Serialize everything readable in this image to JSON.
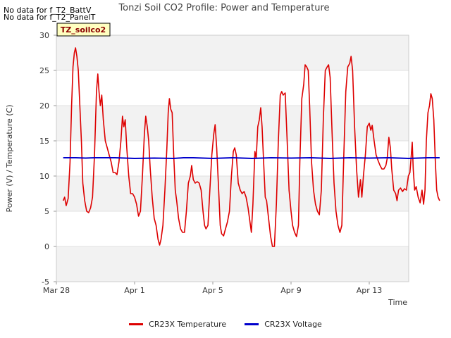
{
  "notes": [
    "No data for f_T2_BattV",
    "No data for f_T2_PanelT"
  ],
  "site_tag": "TZ_soilco2",
  "chart_data": {
    "type": "line",
    "title": "Tonzi Soil CO2 Profile: Power and Temperature",
    "xlabel": "Time",
    "ylabel": "Power (V) / Temperature (C)",
    "ylim": [
      -5,
      30
    ],
    "yticks": [
      -5,
      0,
      5,
      10,
      15,
      20,
      25,
      30
    ],
    "xlim_days": [
      0,
      18.4
    ],
    "xticks": [
      {
        "day": 0,
        "label": "Mar 28"
      },
      {
        "day": 4,
        "label": "Apr 1"
      },
      {
        "day": 8,
        "label": "Apr 5"
      },
      {
        "day": 12,
        "label": "Apr 9"
      },
      {
        "day": 16,
        "label": "Apr 13"
      }
    ],
    "grid": "alternating horizontal bands",
    "legend_position": "bottom",
    "series": [
      {
        "name": "CR23X Temperature",
        "color": "#dd0000",
        "points": [
          [
            0.35,
            6.5
          ],
          [
            0.42,
            7.0
          ],
          [
            0.5,
            5.8
          ],
          [
            0.6,
            6.8
          ],
          [
            0.7,
            12
          ],
          [
            0.78,
            20
          ],
          [
            0.85,
            25.5
          ],
          [
            0.92,
            27.5
          ],
          [
            0.98,
            28.2
          ],
          [
            1.05,
            27
          ],
          [
            1.12,
            25
          ],
          [
            1.2,
            20
          ],
          [
            1.28,
            15
          ],
          [
            1.35,
            9
          ],
          [
            1.45,
            6.5
          ],
          [
            1.55,
            5.0
          ],
          [
            1.65,
            4.8
          ],
          [
            1.75,
            5.5
          ],
          [
            1.85,
            7
          ],
          [
            1.95,
            13
          ],
          [
            2.05,
            22
          ],
          [
            2.12,
            24.5
          ],
          [
            2.18,
            22
          ],
          [
            2.25,
            20
          ],
          [
            2.32,
            21.5
          ],
          [
            2.4,
            18
          ],
          [
            2.5,
            15
          ],
          [
            2.6,
            14
          ],
          [
            2.7,
            13
          ],
          [
            2.8,
            12
          ],
          [
            2.9,
            10.5
          ],
          [
            3.0,
            10.5
          ],
          [
            3.1,
            10.2
          ],
          [
            3.2,
            12
          ],
          [
            3.3,
            15
          ],
          [
            3.38,
            18.5
          ],
          [
            3.45,
            17
          ],
          [
            3.52,
            18
          ],
          [
            3.6,
            14
          ],
          [
            3.7,
            10
          ],
          [
            3.8,
            7.5
          ],
          [
            3.9,
            7.5
          ],
          [
            4.0,
            7
          ],
          [
            4.1,
            6
          ],
          [
            4.2,
            4.3
          ],
          [
            4.3,
            5
          ],
          [
            4.4,
            10
          ],
          [
            4.5,
            16
          ],
          [
            4.57,
            18.5
          ],
          [
            4.65,
            17
          ],
          [
            4.72,
            15
          ],
          [
            4.8,
            11
          ],
          [
            4.9,
            7
          ],
          [
            5.0,
            4
          ],
          [
            5.1,
            3
          ],
          [
            5.2,
            1
          ],
          [
            5.28,
            0.2
          ],
          [
            5.35,
            1
          ],
          [
            5.45,
            3
          ],
          [
            5.55,
            8
          ],
          [
            5.65,
            14
          ],
          [
            5.72,
            19
          ],
          [
            5.78,
            21
          ],
          [
            5.85,
            19.5
          ],
          [
            5.92,
            19
          ],
          [
            6.0,
            13
          ],
          [
            6.08,
            8
          ],
          [
            6.15,
            6.5
          ],
          [
            6.25,
            4
          ],
          [
            6.35,
            2.5
          ],
          [
            6.45,
            2
          ],
          [
            6.55,
            2
          ],
          [
            6.65,
            5
          ],
          [
            6.75,
            9
          ],
          [
            6.85,
            10
          ],
          [
            6.92,
            11.5
          ],
          [
            7.0,
            9.5
          ],
          [
            7.1,
            9
          ],
          [
            7.2,
            9.2
          ],
          [
            7.3,
            9
          ],
          [
            7.4,
            8
          ],
          [
            7.5,
            5
          ],
          [
            7.58,
            3
          ],
          [
            7.65,
            2.5
          ],
          [
            7.75,
            3
          ],
          [
            7.85,
            8
          ],
          [
            7.95,
            13
          ],
          [
            8.05,
            16
          ],
          [
            8.12,
            17.3
          ],
          [
            8.2,
            14
          ],
          [
            8.3,
            8
          ],
          [
            8.38,
            3
          ],
          [
            8.45,
            1.8
          ],
          [
            8.55,
            1.5
          ],
          [
            8.65,
            2.5
          ],
          [
            8.75,
            3.5
          ],
          [
            8.85,
            5
          ],
          [
            8.95,
            10
          ],
          [
            9.05,
            13.5
          ],
          [
            9.12,
            14
          ],
          [
            9.2,
            13
          ],
          [
            9.3,
            9
          ],
          [
            9.4,
            8
          ],
          [
            9.5,
            7.5
          ],
          [
            9.6,
            7.8
          ],
          [
            9.7,
            7
          ],
          [
            9.8,
            5.5
          ],
          [
            9.9,
            3.5
          ],
          [
            9.97,
            2
          ],
          [
            10.05,
            6
          ],
          [
            10.15,
            13.5
          ],
          [
            10.22,
            12.5
          ],
          [
            10.3,
            17
          ],
          [
            10.38,
            18
          ],
          [
            10.45,
            19.7
          ],
          [
            10.52,
            17
          ],
          [
            10.6,
            12
          ],
          [
            10.68,
            7
          ],
          [
            10.75,
            6.5
          ],
          [
            10.85,
            4
          ],
          [
            10.95,
            1.5
          ],
          [
            11.05,
            0
          ],
          [
            11.15,
            0
          ],
          [
            11.25,
            6
          ],
          [
            11.35,
            15
          ],
          [
            11.45,
            21.5
          ],
          [
            11.52,
            22
          ],
          [
            11.6,
            21.5
          ],
          [
            11.7,
            21.8
          ],
          [
            11.8,
            15
          ],
          [
            11.9,
            8
          ],
          [
            12.0,
            5
          ],
          [
            12.08,
            3
          ],
          [
            12.18,
            2
          ],
          [
            12.28,
            1.4
          ],
          [
            12.38,
            3
          ],
          [
            12.45,
            12
          ],
          [
            12.55,
            21
          ],
          [
            12.65,
            23
          ],
          [
            12.72,
            25.8
          ],
          [
            12.8,
            25.5
          ],
          [
            12.88,
            25
          ],
          [
            12.95,
            20
          ],
          [
            13.05,
            12
          ],
          [
            13.15,
            8
          ],
          [
            13.25,
            6
          ],
          [
            13.35,
            5
          ],
          [
            13.45,
            4.5
          ],
          [
            13.55,
            8
          ],
          [
            13.65,
            18
          ],
          [
            13.75,
            25
          ],
          [
            13.85,
            25.5
          ],
          [
            13.92,
            25.8
          ],
          [
            14.0,
            24
          ],
          [
            14.1,
            16
          ],
          [
            14.2,
            9
          ],
          [
            14.3,
            5
          ],
          [
            14.4,
            3
          ],
          [
            14.5,
            2
          ],
          [
            14.6,
            3
          ],
          [
            14.7,
            13
          ],
          [
            14.8,
            22
          ],
          [
            14.9,
            25.5
          ],
          [
            15.0,
            26
          ],
          [
            15.07,
            27
          ],
          [
            15.15,
            25
          ],
          [
            15.25,
            17
          ],
          [
            15.35,
            11
          ],
          [
            15.45,
            7
          ],
          [
            15.55,
            9.5
          ],
          [
            15.62,
            7
          ],
          [
            15.7,
            10
          ],
          [
            15.8,
            13
          ],
          [
            15.9,
            17
          ],
          [
            16.0,
            17.5
          ],
          [
            16.08,
            16.5
          ],
          [
            16.15,
            17.2
          ],
          [
            16.25,
            15
          ],
          [
            16.35,
            13
          ],
          [
            16.45,
            12.2
          ],
          [
            16.55,
            11.5
          ],
          [
            16.65,
            11
          ],
          [
            16.75,
            11
          ],
          [
            16.85,
            11.5
          ],
          [
            16.92,
            12.5
          ],
          [
            17.0,
            15.5
          ],
          [
            17.08,
            14
          ],
          [
            17.15,
            11
          ],
          [
            17.25,
            8
          ],
          [
            17.35,
            7.5
          ],
          [
            17.42,
            6.5
          ],
          [
            17.5,
            8
          ],
          [
            17.6,
            8.3
          ],
          [
            17.7,
            7.8
          ],
          [
            17.8,
            8.2
          ],
          [
            17.9,
            8
          ],
          [
            18.0,
            10
          ],
          [
            18.08,
            10.5
          ],
          [
            18.15,
            13
          ],
          [
            18.2,
            14.8
          ],
          [
            18.25,
            11
          ],
          [
            18.32,
            8
          ],
          [
            18.4,
            8.5
          ],
          [
            18.5,
            7
          ],
          [
            18.6,
            6.2
          ],
          [
            18.7,
            8
          ],
          [
            18.78,
            6
          ],
          [
            18.85,
            8
          ],
          [
            18.92,
            15
          ],
          [
            19.0,
            19
          ],
          [
            19.08,
            20
          ],
          [
            19.15,
            21.7
          ],
          [
            19.22,
            21
          ],
          [
            19.3,
            18
          ],
          [
            19.38,
            12
          ],
          [
            19.45,
            8
          ],
          [
            19.52,
            7
          ],
          [
            19.6,
            6.5
          ]
        ]
      },
      {
        "name": "CR23X Voltage",
        "color": "#0000cc",
        "points": [
          [
            0.35,
            12.6
          ],
          [
            1.0,
            12.6
          ],
          [
            1.5,
            12.55
          ],
          [
            2.0,
            12.6
          ],
          [
            3.0,
            12.6
          ],
          [
            4.0,
            12.5
          ],
          [
            5.0,
            12.55
          ],
          [
            6.0,
            12.5
          ],
          [
            6.5,
            12.6
          ],
          [
            7.0,
            12.6
          ],
          [
            8.0,
            12.5
          ],
          [
            9.0,
            12.6
          ],
          [
            10.0,
            12.5
          ],
          [
            11.0,
            12.6
          ],
          [
            12.0,
            12.55
          ],
          [
            13.0,
            12.6
          ],
          [
            14.0,
            12.5
          ],
          [
            15.0,
            12.6
          ],
          [
            16.0,
            12.55
          ],
          [
            17.0,
            12.6
          ],
          [
            18.0,
            12.5
          ],
          [
            19.0,
            12.6
          ],
          [
            19.6,
            12.6
          ]
        ]
      }
    ]
  }
}
